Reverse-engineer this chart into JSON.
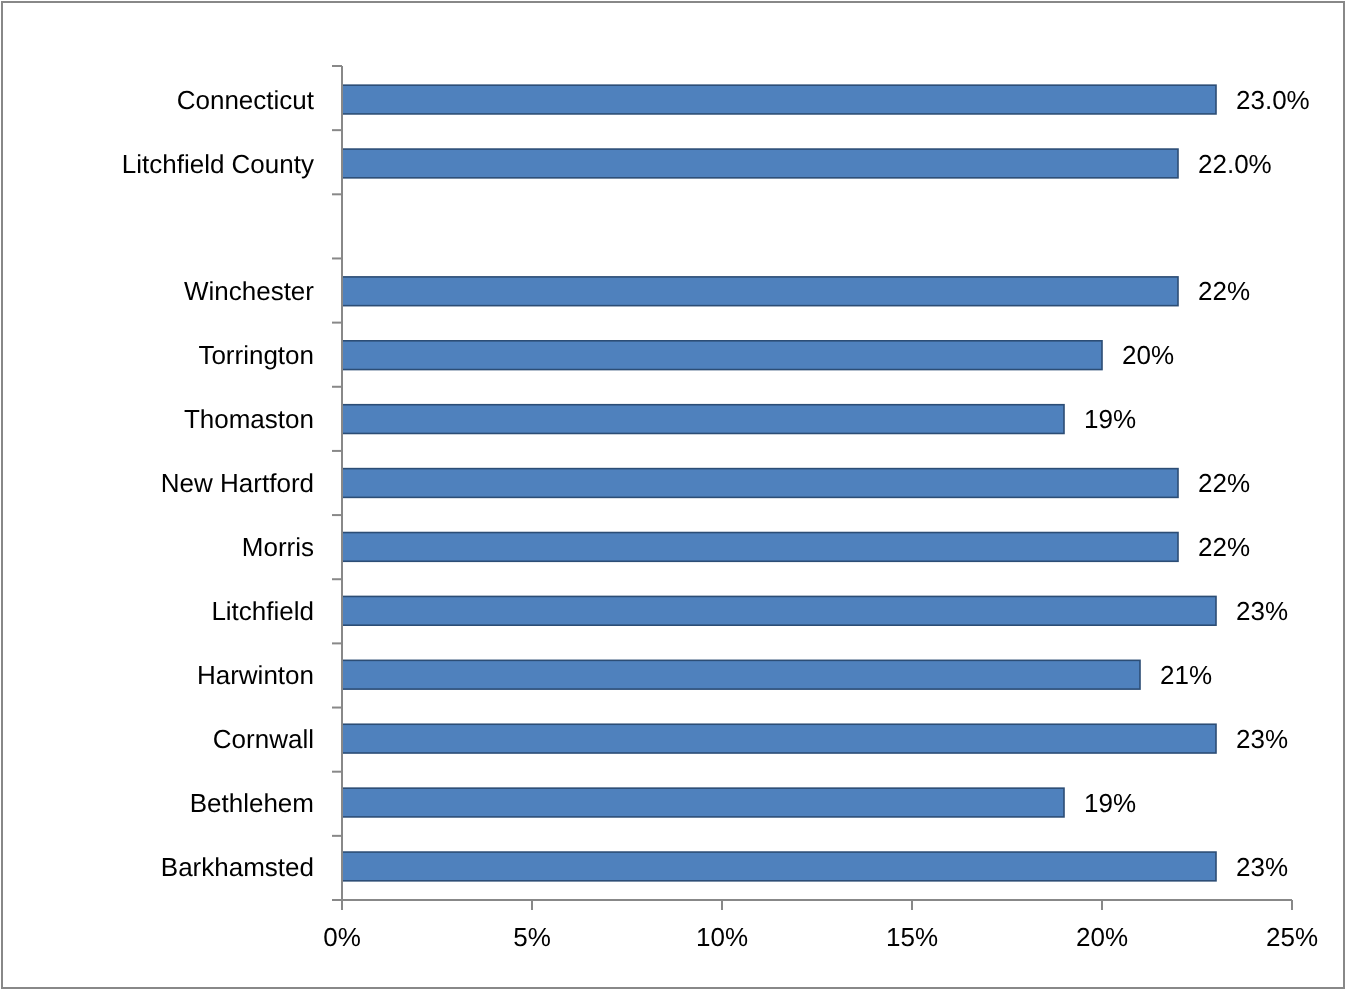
{
  "chart_data": {
    "type": "bar",
    "orientation": "horizontal",
    "categories": [
      "Connecticut",
      "Litchfield County",
      null,
      "Winchester",
      "Torrington",
      "Thomaston",
      "New Hartford",
      "Morris",
      "Litchfield",
      "Harwinton",
      "Cornwall",
      "Bethlehem",
      "Barkhamsted"
    ],
    "values": [
      23,
      22,
      null,
      22,
      20,
      19,
      22,
      22,
      23,
      21,
      23,
      19,
      23
    ],
    "value_labels": [
      "23.0%",
      "22.0%",
      null,
      "22%",
      "20%",
      "19%",
      "22%",
      "22%",
      "23%",
      "21%",
      "23%",
      "19%",
      "23%"
    ],
    "color": "#4f81bd",
    "xlim": [
      0,
      25
    ],
    "xticks": [
      {
        "value": 0,
        "label": "0%"
      },
      {
        "value": 5,
        "label": "5%"
      },
      {
        "value": 10,
        "label": "10%"
      },
      {
        "value": 15,
        "label": "15%"
      },
      {
        "value": 20,
        "label": "20%"
      },
      {
        "value": 25,
        "label": "25%"
      }
    ],
    "grid": false
  }
}
